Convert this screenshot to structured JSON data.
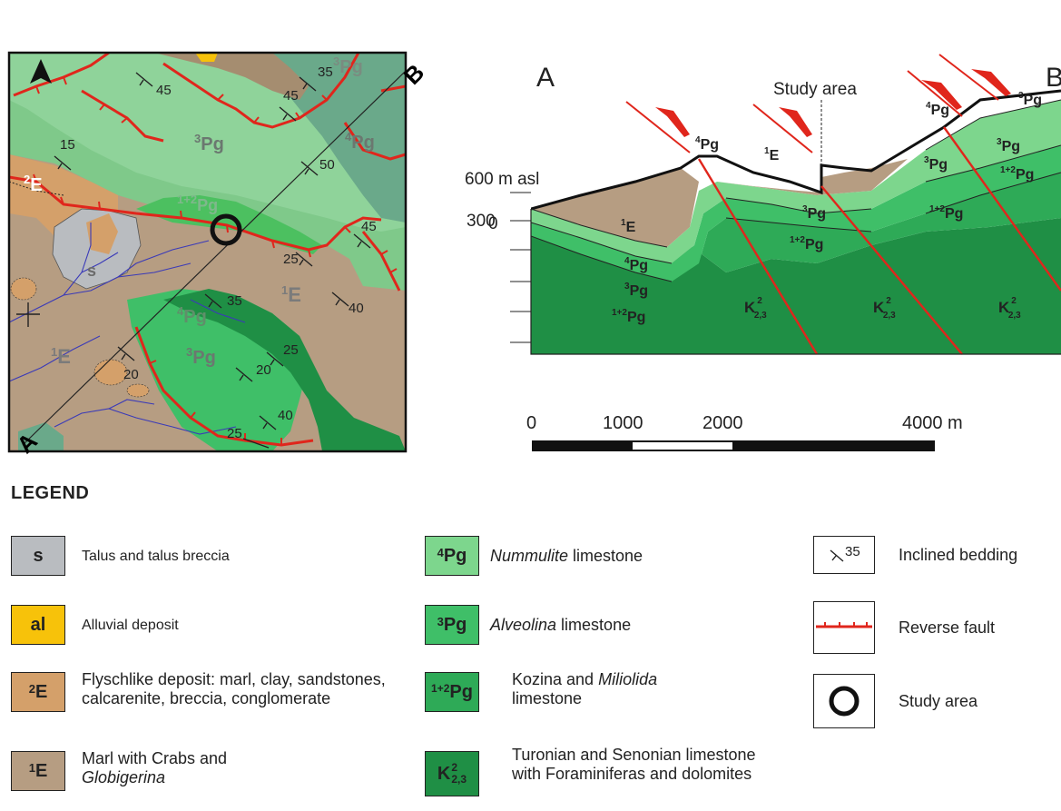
{
  "map": {
    "corner_a": "A",
    "corner_b": "B",
    "labels": [
      {
        "text": "3Pg",
        "sup": "3",
        "base": "Pg"
      },
      {
        "text": "4Pg",
        "sup": "4",
        "base": "Pg"
      },
      {
        "text": "1+2Pg",
        "sup": "1+2",
        "base": "Pg"
      },
      {
        "text": "2E",
        "sup": "2",
        "base": "E"
      },
      {
        "text": "s"
      },
      {
        "text": "1E",
        "sup": "1",
        "base": "E"
      },
      {
        "text": "4Pg",
        "sup": "4",
        "base": "Pg"
      },
      {
        "text": "3Pg",
        "sup": "3",
        "base": "Pg"
      },
      {
        "text": "1E",
        "sup": "1",
        "base": "E"
      },
      {
        "text": "3Pg",
        "sup": "3",
        "base": "Pg"
      }
    ],
    "dips": [
      "45",
      "35",
      "45",
      "15",
      "50",
      "45",
      "25",
      "35",
      "40",
      "25",
      "20",
      "20",
      "40",
      "25"
    ]
  },
  "section": {
    "end_a": "A",
    "end_b": "B",
    "study_area": "Study area",
    "elevation_labels": [
      "600 m asl",
      "300",
      "0"
    ],
    "units": {
      "top_4pg_left": {
        "sup": "4",
        "base": "Pg"
      },
      "top_1e": {
        "sup": "1",
        "base": "E"
      },
      "top_4pg_right": {
        "sup": "4",
        "base": "Pg"
      },
      "top_3pg_right": {
        "sup": "3",
        "base": "Pg"
      },
      "e1_fill": {
        "sup": "1",
        "base": "E"
      },
      "pg4_left": {
        "sup": "4",
        "base": "Pg"
      },
      "pg3_left": {
        "sup": "3",
        "base": "Pg"
      },
      "pg12_left": {
        "sup": "1+2",
        "base": "Pg"
      },
      "pg3_mid": {
        "sup": "3",
        "base": "Pg"
      },
      "pg12_mid": {
        "sup": "1+2",
        "base": "Pg"
      },
      "pg3_right": {
        "sup": "3",
        "base": "Pg"
      },
      "pg12_right": {
        "sup": "1+2",
        "base": "Pg"
      },
      "pg3_far": {
        "sup": "3",
        "base": "Pg"
      },
      "pg12_far": {
        "sup": "1+2",
        "base": "Pg"
      },
      "k_base": "K",
      "k_sup": "2",
      "k_sub": "2,3"
    },
    "scale": {
      "labels": [
        "0",
        "1000",
        "2000",
        "4000 m"
      ]
    }
  },
  "legend": {
    "title": "LEGEND",
    "col1": [
      {
        "code": "s",
        "sup": "",
        "color": "#b9bcc0",
        "text": "Talus and talus breccia"
      },
      {
        "code": "al",
        "sup": "",
        "color": "#f7c20a",
        "text": "Alluvial deposit"
      },
      {
        "code": "E",
        "sup": "2",
        "color": "#d4a06a",
        "text": "Flyschlike deposit: marl, clay, sandstones, calcarenite, breccia, conglomerate"
      },
      {
        "code": "E",
        "sup": "1",
        "color": "#b69d82",
        "text_a": "Marl with Crabs and",
        "text_b": "Globigerina"
      }
    ],
    "col2": [
      {
        "code": "Pg",
        "sup": "4",
        "color": "#7dd68d",
        "italic": "Nummulite",
        "text": " limestone"
      },
      {
        "code": "Pg",
        "sup": "3",
        "color": "#3fbf68",
        "italic": "Alveolina",
        "text": " limestone"
      },
      {
        "code": "Pg",
        "sup": "1+2",
        "color": "#2eaa57",
        "text_a": "Kozina and ",
        "italic": "Miliolida",
        "text_b": "limestone"
      },
      {
        "code": "K",
        "sup": "2",
        "sub": "2,3",
        "color": "#1f8f45",
        "text": "Turonian and Senonian limestone with Foraminiferas and dolomites"
      }
    ],
    "col3": [
      {
        "symbol": "inclined-bedding",
        "sym_text": "35",
        "text": "Inclined bedding"
      },
      {
        "symbol": "reverse-fault",
        "text": "Reverse fault"
      },
      {
        "symbol": "study-area",
        "text": "Study area"
      }
    ]
  },
  "colors": {
    "e1": "#b69d82",
    "e2": "#d4a06a",
    "s": "#b9bcc0",
    "al": "#f7c20a",
    "pg4": "#7dd68d",
    "pg3": "#3fbf68",
    "pg12": "#2eaa57",
    "k": "#1f8f45",
    "map_pg4_dark": "#6aa98a",
    "fault": "#e0261c",
    "river": "#3a3ab8"
  }
}
